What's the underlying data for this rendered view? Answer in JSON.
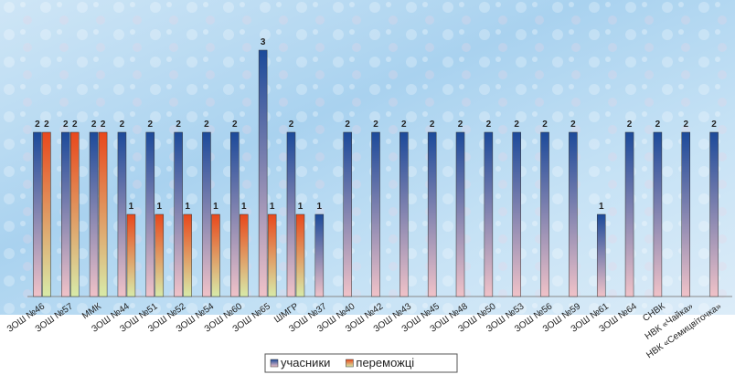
{
  "chart_data": {
    "type": "bar",
    "categories": [
      "ЗОШ №46",
      "ЗОШ №57",
      "ММК",
      "ЗОШ №44",
      "ЗОШ №51",
      "ЗОШ №52",
      "ЗОШ №54",
      "ЗОШ №60",
      "ЗОШ №65",
      "ШМГР",
      "ЗОШ №37",
      "ЗОШ №40",
      "ЗОШ №42",
      "ЗОШ №43",
      "ЗОШ №45",
      "ЗОШ №48",
      "ЗОШ №50",
      "ЗОШ №53",
      "ЗОШ №56",
      "ЗОШ №59",
      "ЗОШ №61",
      "ЗОШ №64",
      "СНВК",
      "НВК «Чайка»",
      "НВК «Семицвіточка»"
    ],
    "series": [
      {
        "name": "учасники",
        "color": "#1c4a9a",
        "values": [
          2,
          2,
          2,
          2,
          2,
          2,
          2,
          2,
          3,
          2,
          1,
          2,
          2,
          2,
          2,
          2,
          2,
          2,
          2,
          2,
          1,
          2,
          2,
          2,
          2
        ]
      },
      {
        "name": "переможці",
        "color": "#e8481c",
        "values": [
          2,
          2,
          2,
          1,
          1,
          1,
          1,
          1,
          1,
          1,
          null,
          null,
          null,
          null,
          null,
          null,
          null,
          null,
          null,
          null,
          null,
          null,
          null,
          null,
          null
        ]
      }
    ],
    "ylim": [
      0,
      3.5
    ],
    "legend": "bottom"
  }
}
